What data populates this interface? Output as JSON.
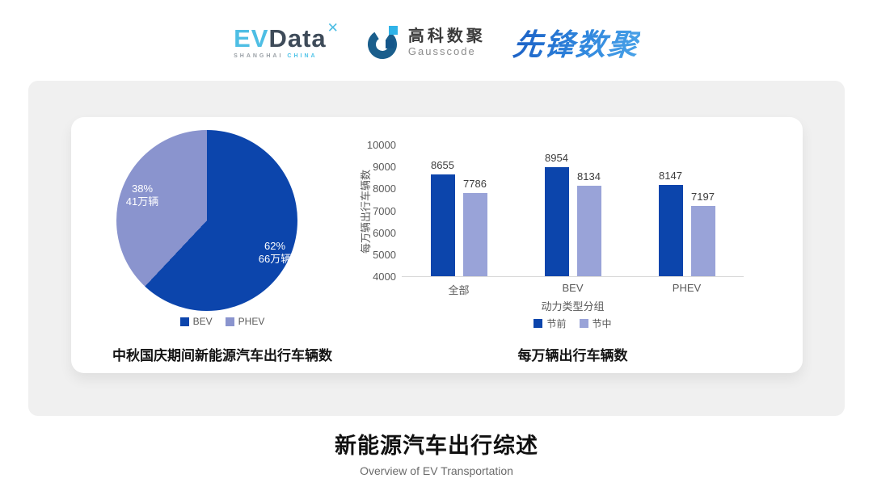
{
  "header": {
    "evdata": {
      "ev": "EV",
      "data": "Data",
      "mark": "✕",
      "sub_left": "SHANGHAI",
      "sub_right": "CHINA"
    },
    "gausscode": {
      "cn": "高科数聚",
      "en": "Gausscode"
    },
    "xianfeng": "先锋数聚"
  },
  "chart_data": [
    {
      "type": "pie",
      "title": "中秋国庆期间新能源汽车出行车辆数",
      "legend_position": "bottom",
      "start_angle": "12 o'clock, clockwise",
      "slices": [
        {
          "name": "BEV",
          "pct": 62,
          "pct_label": "62%",
          "value_label": "66万辆",
          "color": "#0c45ac"
        },
        {
          "name": "PHEV",
          "pct": 38,
          "pct_label": "38%",
          "value_label": "41万辆",
          "color": "#8a94ce"
        }
      ]
    },
    {
      "type": "bar",
      "title": "每万辆出行车辆数",
      "categories": [
        "全部",
        "BEV",
        "PHEV"
      ],
      "series": [
        {
          "name": "节前",
          "values": [
            8655,
            8954,
            8147
          ],
          "color": "#0c45ac"
        },
        {
          "name": "节中",
          "values": [
            7786,
            8134,
            7197
          ],
          "color": "#99a3d8"
        }
      ],
      "xlabel": "动力类型分组",
      "ylabel": "每万辆出行车辆数",
      "ylim": [
        4000,
        10000
      ],
      "ytick_step": 1000,
      "grid": false,
      "legend_position": "bottom"
    }
  ],
  "footer": {
    "title": "新能源汽车出行综述",
    "subtitle": "Overview of EV Transportation"
  },
  "colors": {
    "accent_dark_blue": "#0c45ac",
    "accent_light_purple": "#99a3d8",
    "pie_light_purple": "#8a94ce",
    "panel_bg": "#f0f0f0",
    "card_bg": "#ffffff",
    "axis_text": "#595959"
  }
}
